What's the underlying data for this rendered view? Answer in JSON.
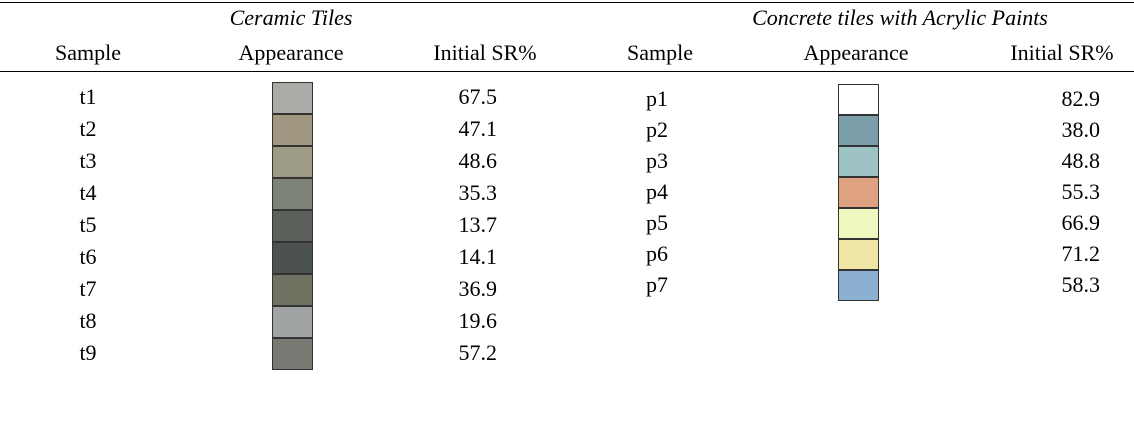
{
  "ceramic": {
    "title": "Ceramic Tiles",
    "headers": [
      "Sample",
      "Appearance",
      "Initial SR%"
    ],
    "rows": [
      [
        "t1",
        "67.5"
      ],
      [
        "t2",
        "47.1"
      ],
      [
        "t3",
        "48.6"
      ],
      [
        "t4",
        "35.3"
      ],
      [
        "t5",
        "13.7"
      ],
      [
        "t6",
        "14.1"
      ],
      [
        "t7",
        "36.9"
      ],
      [
        "t8",
        "19.6"
      ],
      [
        "t9",
        "57.2"
      ]
    ]
  },
  "concrete": {
    "title": "Concrete tiles with Acrylic Paints",
    "headers": [
      "Sample",
      "Appearance",
      "Initial SR%"
    ],
    "rows": [
      [
        "p1",
        "82.9"
      ],
      [
        "p2",
        "38.0"
      ],
      [
        "p3",
        "48.8"
      ],
      [
        "p4",
        "55.3"
      ],
      [
        "p5",
        "66.9"
      ],
      [
        "p6",
        "71.2"
      ],
      [
        "p7",
        "58.3"
      ]
    ]
  }
}
